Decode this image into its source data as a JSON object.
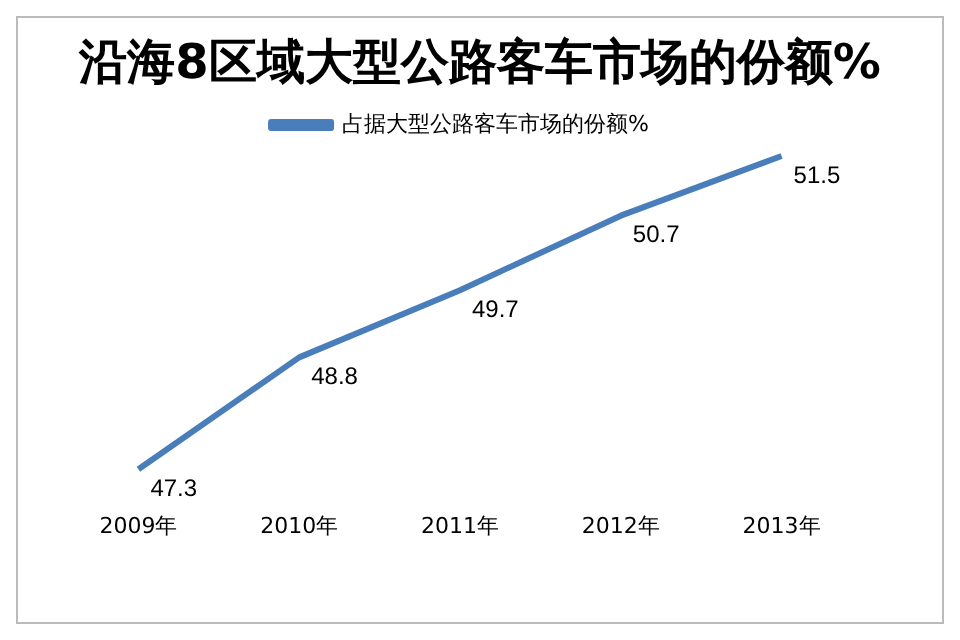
{
  "chart_data": {
    "type": "line",
    "title": "沿海8区域大型公路客车市场的份额%",
    "categories": [
      "2009年",
      "2010年",
      "2011年",
      "2012年",
      "2013年"
    ],
    "series": [
      {
        "name": "占据大型公路客车市场的份额%",
        "color": "#4a7ebb",
        "values": [
          47.3,
          48.8,
          49.7,
          50.7,
          51.5
        ]
      }
    ],
    "data_labels": true,
    "legend": "top",
    "grid": false,
    "marker": "none",
    "line_style": "solid",
    "tick_labels": "x"
  }
}
